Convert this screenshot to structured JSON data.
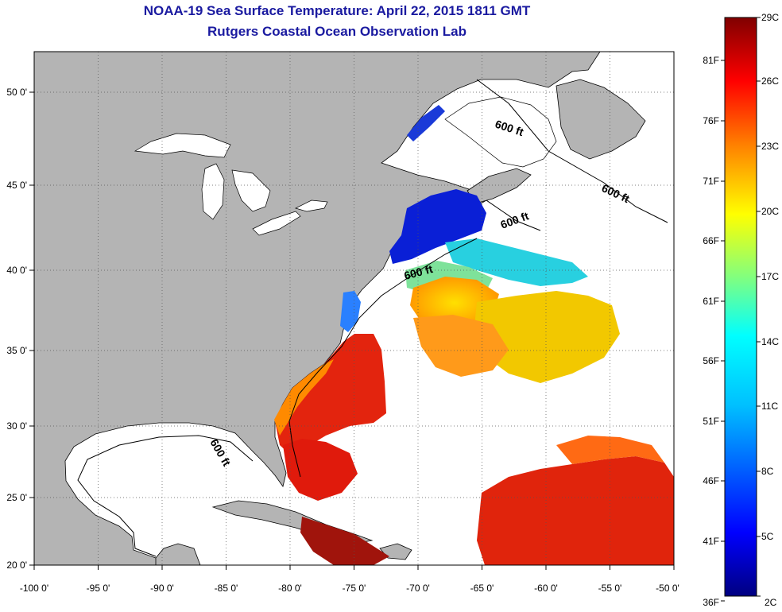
{
  "title": "NOAA-19 Sea Surface Temperature:  April 22, 2015 1811 GMT",
  "subtitle": "Rutgers Coastal Ocean Observation Lab",
  "map": {
    "lon_range": [
      -100,
      -50
    ],
    "lat_range": [
      20,
      52.5
    ],
    "lon_ticks": [
      {
        "value": -100,
        "label": "-100 0'"
      },
      {
        "value": -95,
        "label": "-95 0'"
      },
      {
        "value": -90,
        "label": "-90 0'"
      },
      {
        "value": -85,
        "label": "-85 0'"
      },
      {
        "value": -80,
        "label": "-80 0'"
      },
      {
        "value": -75,
        "label": "-75 0'"
      },
      {
        "value": -70,
        "label": "-70 0'"
      },
      {
        "value": -65,
        "label": "-65 0'"
      },
      {
        "value": -60,
        "label": "-60 0'"
      },
      {
        "value": -55,
        "label": "-55 0'"
      },
      {
        "value": -50,
        "label": "-50 0'"
      }
    ],
    "lat_ticks": [
      {
        "value": 50,
        "label": "50 0'"
      },
      {
        "value": 45,
        "label": "45 0'"
      },
      {
        "value": 40,
        "label": "40 0'"
      },
      {
        "value": 35,
        "label": "35 0'"
      },
      {
        "value": 30,
        "label": "30 0'"
      },
      {
        "value": 25,
        "label": "25 0'"
      },
      {
        "value": 20,
        "label": "20 0'"
      }
    ],
    "grid": "dotted",
    "land_color": "#b4b4b4",
    "ocean_color": "#ffffff",
    "contour_label": "600 ft"
  },
  "colorbar": {
    "celsius_labels": [
      "29C",
      "26C",
      "23C",
      "20C",
      "17C",
      "14C",
      "11C",
      "8C",
      "5C",
      "2C"
    ],
    "fahrenheit_labels": [
      "81F",
      "76F",
      "71F",
      "66F",
      "61F",
      "56F",
      "51F",
      "46F",
      "41F",
      "36F"
    ],
    "colors": [
      "#800000",
      "#ff0000",
      "#ff8000",
      "#ffff00",
      "#80ff80",
      "#00ffff",
      "#0080ff",
      "#0000ff",
      "#000080"
    ]
  }
}
